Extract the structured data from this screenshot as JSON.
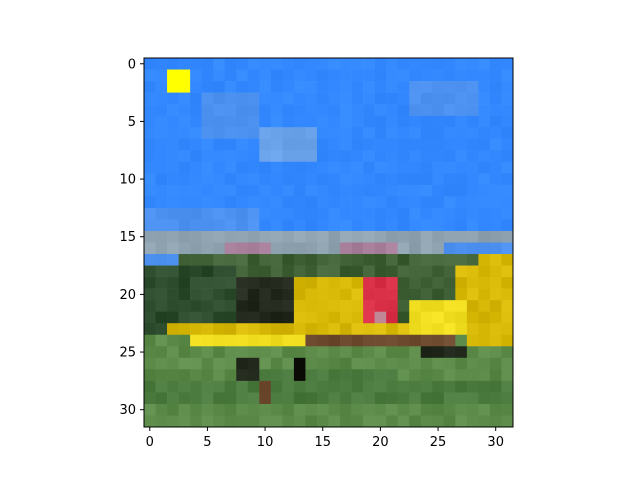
{
  "chart_data": {
    "type": "heatmap",
    "subtype": "pixel-image",
    "grid_size": [
      32,
      32
    ],
    "xlim": [
      -0.5,
      31.5
    ],
    "ylim": [
      31.5,
      -0.5
    ],
    "y_axis_inverted": true,
    "x_ticks": [
      0,
      5,
      10,
      15,
      20,
      25,
      30
    ],
    "y_ticks": [
      0,
      5,
      10,
      15,
      20,
      25,
      30
    ],
    "x_tick_labels": [
      "0",
      "5",
      "10",
      "15",
      "20",
      "25",
      "30"
    ],
    "y_tick_labels": [
      "0",
      "5",
      "10",
      "15",
      "20",
      "25",
      "30"
    ],
    "title": "",
    "xlabel": "",
    "ylabel": "",
    "grid": false,
    "legend": "none",
    "colorbar": false,
    "highlighted_patch": {
      "x_range": [
        2,
        3
      ],
      "y_range": [
        1,
        2
      ],
      "color": "#ffff00"
    },
    "palette": {
      "sky": "#3388ff",
      "sky_light": "#4c91f0",
      "cloud": "#6aa2ea",
      "haze": "#8fa2b0",
      "pink": "#a77f9b",
      "tree_dark": "#2c4a2c",
      "tree_mid": "#3f6135",
      "yellow": "#d7b807",
      "yellow_bright": "#f0dc1e",
      "red": "#d82f46",
      "pink_light": "#c38a99",
      "grass": "#5b8a49",
      "grass_dark": "#4b7a3e",
      "shadow": "#232a1d",
      "black": "#0b0b06",
      "brown": "#6d4a2e",
      "patch": "#ffff00"
    }
  }
}
